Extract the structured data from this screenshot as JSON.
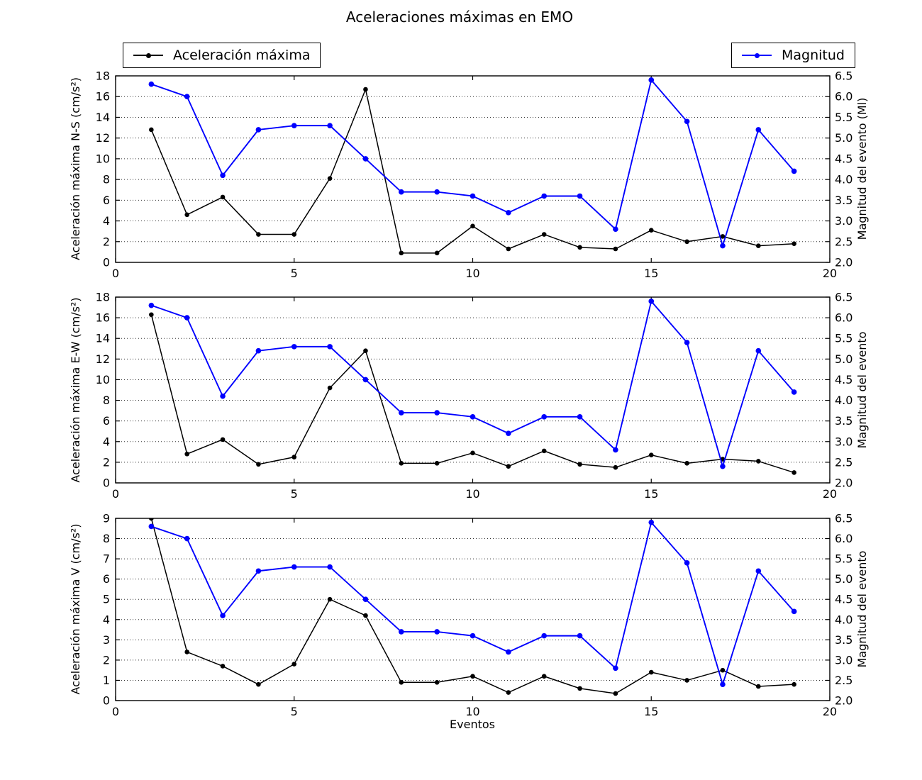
{
  "title": "Aceleraciones máximas en EMO",
  "xlabel": "Eventos",
  "legends": [
    {
      "label": "Aceleración máxima",
      "color": "#000000"
    },
    {
      "label": "Magnitud",
      "color": "#0000ff"
    }
  ],
  "colors": {
    "acceleration": "#000000",
    "magnitude": "#0000ff",
    "grid": "#333333",
    "frame": "#000000"
  },
  "chart_data": [
    {
      "type": "line",
      "name": "ns",
      "x": [
        1,
        2,
        3,
        4,
        5,
        6,
        7,
        8,
        9,
        10,
        11,
        12,
        13,
        14,
        15,
        16,
        17,
        18,
        19
      ],
      "series": [
        {
          "name": "Aceleración máxima",
          "axis": "left",
          "color": "#000000",
          "values": [
            12.8,
            4.6,
            6.3,
            2.7,
            2.7,
            8.1,
            16.7,
            0.9,
            0.9,
            3.5,
            1.3,
            2.7,
            1.45,
            1.3,
            3.1,
            2.0,
            2.5,
            1.6,
            1.8
          ]
        },
        {
          "name": "Magnitud",
          "axis": "right",
          "color": "#0000ff",
          "values": [
            6.3,
            6.0,
            4.1,
            5.2,
            5.3,
            5.3,
            4.5,
            3.7,
            3.7,
            3.6,
            3.2,
            3.6,
            3.6,
            2.8,
            6.4,
            5.4,
            2.4,
            5.2,
            4.2
          ]
        }
      ],
      "ylabel_left": "Aceleración máxima N-S (cm/s²)",
      "ylabel_right": "Magnitud del evento (Ml)",
      "ylim_left": [
        0,
        18
      ],
      "ylim_right": [
        2.0,
        6.5
      ],
      "yticks_left": [
        0,
        2,
        4,
        6,
        8,
        10,
        12,
        14,
        16,
        18
      ],
      "yticks_right": [
        "2.0",
        "2.5",
        "3.0",
        "3.5",
        "4.0",
        "4.5",
        "5.0",
        "5.5",
        "6.0",
        "6.5"
      ],
      "xlim": [
        0,
        20
      ],
      "xticks": [
        0,
        5,
        10,
        15,
        20
      ],
      "grid": true
    },
    {
      "type": "line",
      "name": "ew",
      "x": [
        1,
        2,
        3,
        4,
        5,
        6,
        7,
        8,
        9,
        10,
        11,
        12,
        13,
        14,
        15,
        16,
        17,
        18,
        19
      ],
      "series": [
        {
          "name": "Aceleración máxima",
          "axis": "left",
          "color": "#000000",
          "values": [
            16.3,
            2.8,
            4.2,
            1.8,
            2.5,
            9.2,
            12.8,
            1.9,
            1.9,
            2.9,
            1.6,
            3.1,
            1.8,
            1.5,
            2.7,
            1.9,
            2.3,
            2.1,
            1.0
          ]
        },
        {
          "name": "Magnitud",
          "axis": "right",
          "color": "#0000ff",
          "values": [
            6.3,
            6.0,
            4.1,
            5.2,
            5.3,
            5.3,
            4.5,
            3.7,
            3.7,
            3.6,
            3.2,
            3.6,
            3.6,
            2.8,
            6.4,
            5.4,
            2.4,
            5.2,
            4.2
          ]
        }
      ],
      "ylabel_left": "Aceleración máxima E-W (cm/s²)",
      "ylabel_right": "Magnitud del evento",
      "ylim_left": [
        0,
        18
      ],
      "ylim_right": [
        2.0,
        6.5
      ],
      "yticks_left": [
        0,
        2,
        4,
        6,
        8,
        10,
        12,
        14,
        16,
        18
      ],
      "yticks_right": [
        "2.0",
        "2.5",
        "3.0",
        "3.5",
        "4.0",
        "4.5",
        "5.0",
        "5.5",
        "6.0",
        "6.5"
      ],
      "xlim": [
        0,
        20
      ],
      "xticks": [
        0,
        5,
        10,
        15,
        20
      ],
      "grid": true
    },
    {
      "type": "line",
      "name": "v",
      "x": [
        1,
        2,
        3,
        4,
        5,
        6,
        7,
        8,
        9,
        10,
        11,
        12,
        13,
        14,
        15,
        16,
        17,
        18,
        19
      ],
      "series": [
        {
          "name": "Aceleración máxima",
          "axis": "left",
          "color": "#000000",
          "values": [
            9.0,
            2.4,
            1.7,
            0.8,
            1.8,
            5.0,
            4.2,
            0.9,
            0.9,
            1.2,
            0.4,
            1.2,
            0.6,
            0.35,
            1.4,
            1.0,
            1.5,
            0.7,
            0.8
          ]
        },
        {
          "name": "Magnitud",
          "axis": "right",
          "color": "#0000ff",
          "values": [
            6.3,
            6.0,
            4.1,
            5.2,
            5.3,
            5.3,
            4.5,
            3.7,
            3.7,
            3.6,
            3.2,
            3.6,
            3.6,
            2.8,
            6.4,
            5.4,
            2.4,
            5.2,
            4.2
          ]
        }
      ],
      "ylabel_left": "Aceleración máxima V (cm/s²)",
      "ylabel_right": "Magnitud del evento",
      "ylim_left": [
        0,
        9
      ],
      "ylim_right": [
        2.0,
        6.5
      ],
      "yticks_left": [
        0,
        1,
        2,
        3,
        4,
        5,
        6,
        7,
        8,
        9
      ],
      "yticks_right": [
        "2.0",
        "2.5",
        "3.0",
        "3.5",
        "4.0",
        "4.5",
        "5.0",
        "5.5",
        "6.0",
        "6.5"
      ],
      "xlim": [
        0,
        20
      ],
      "xticks": [
        0,
        5,
        10,
        15,
        20
      ],
      "grid": true
    }
  ]
}
